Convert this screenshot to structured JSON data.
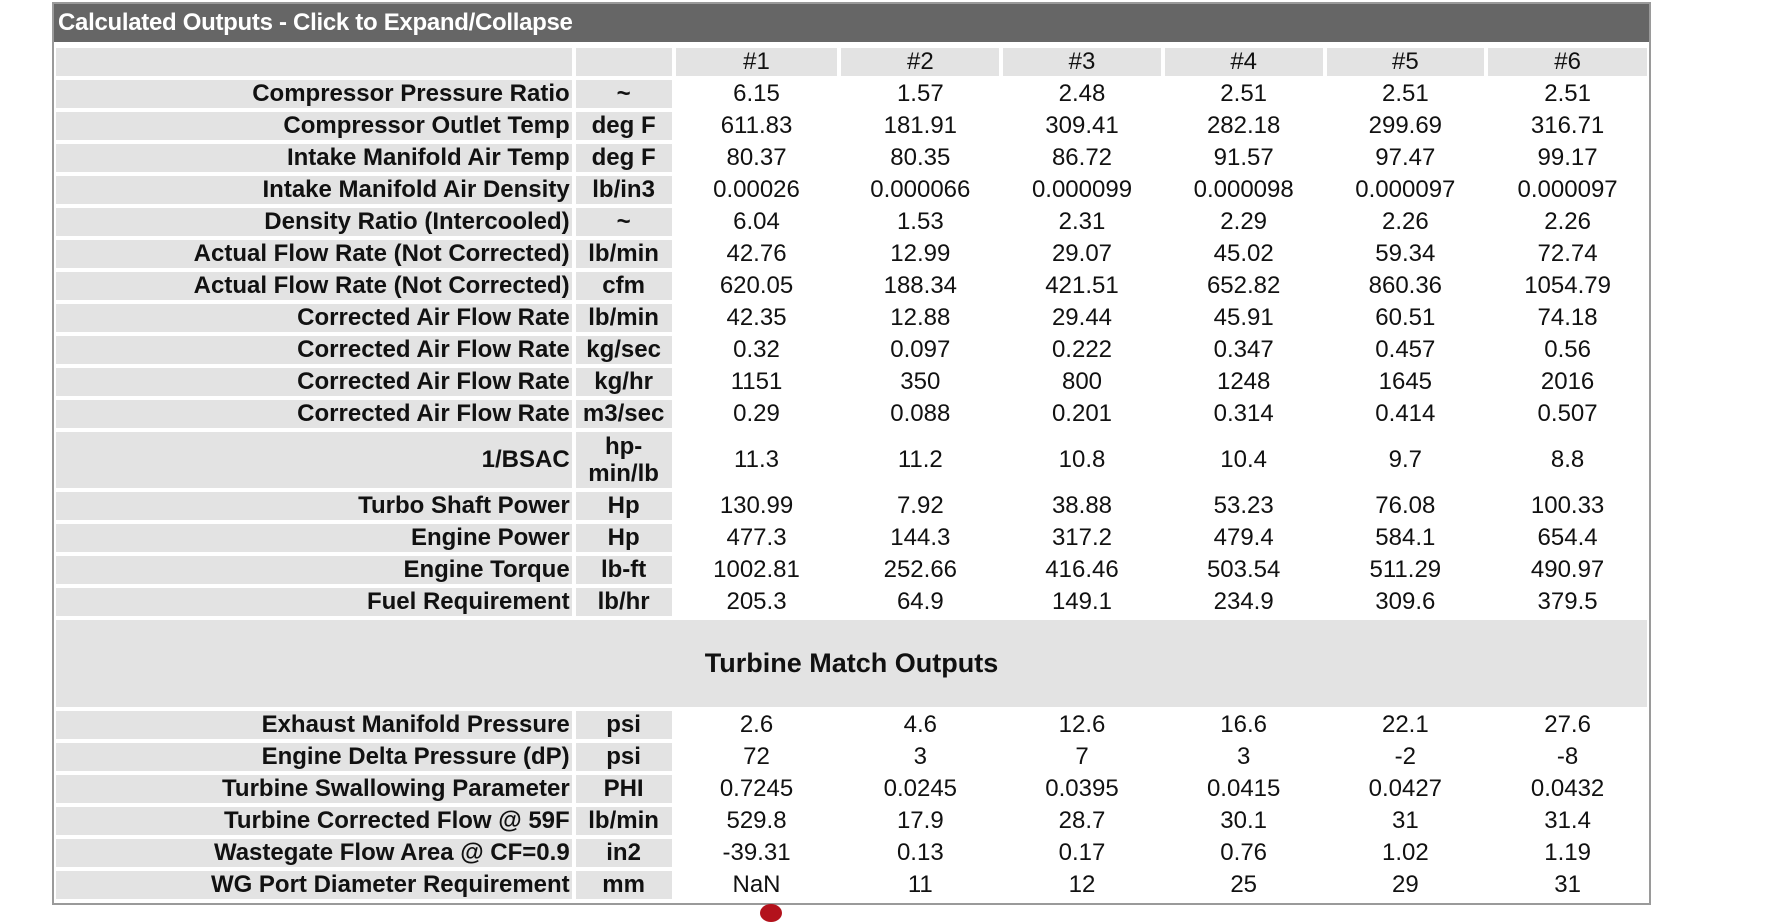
{
  "panel": {
    "title": "Calculated Outputs - Click to Expand/Collapse",
    "columns": [
      "#1",
      "#2",
      "#3",
      "#4",
      "#5",
      "#6"
    ]
  },
  "rows": [
    {
      "label": "Compressor Pressure Ratio",
      "unit": "~",
      "values": [
        "6.15",
        "1.57",
        "2.48",
        "2.51",
        "2.51",
        "2.51"
      ]
    },
    {
      "label": "Compressor Outlet Temp",
      "unit": "deg F",
      "values": [
        "611.83",
        "181.91",
        "309.41",
        "282.18",
        "299.69",
        "316.71"
      ]
    },
    {
      "label": "Intake Manifold Air Temp",
      "unit": "deg F",
      "values": [
        "80.37",
        "80.35",
        "86.72",
        "91.57",
        "97.47",
        "99.17"
      ]
    },
    {
      "label": "Intake Manifold Air Density",
      "unit": "lb/in3",
      "values": [
        "0.00026",
        "0.000066",
        "0.000099",
        "0.000098",
        "0.000097",
        "0.000097"
      ]
    },
    {
      "label": "Density Ratio (Intercooled)",
      "unit": "~",
      "values": [
        "6.04",
        "1.53",
        "2.31",
        "2.29",
        "2.26",
        "2.26"
      ]
    },
    {
      "label": "Actual Flow Rate (Not Corrected)",
      "unit": "lb/min",
      "values": [
        "42.76",
        "12.99",
        "29.07",
        "45.02",
        "59.34",
        "72.74"
      ]
    },
    {
      "label": "Actual Flow Rate (Not Corrected)",
      "unit": "cfm",
      "values": [
        "620.05",
        "188.34",
        "421.51",
        "652.82",
        "860.36",
        "1054.79"
      ]
    },
    {
      "label": "Corrected Air Flow Rate",
      "unit": "lb/min",
      "values": [
        "42.35",
        "12.88",
        "29.44",
        "45.91",
        "60.51",
        "74.18"
      ]
    },
    {
      "label": "Corrected Air Flow Rate",
      "unit": "kg/sec",
      "values": [
        "0.32",
        "0.097",
        "0.222",
        "0.347",
        "0.457",
        "0.56"
      ]
    },
    {
      "label": "Corrected Air Flow Rate",
      "unit": "kg/hr",
      "values": [
        "1151",
        "350",
        "800",
        "1248",
        "1645",
        "2016"
      ]
    },
    {
      "label": "Corrected Air Flow Rate",
      "unit": "m3/sec",
      "values": [
        "0.29",
        "0.088",
        "0.201",
        "0.314",
        "0.414",
        "0.507"
      ]
    },
    {
      "label": "1/BSAC",
      "unit": "hp-min/lb",
      "values": [
        "11.3",
        "11.2",
        "10.8",
        "10.4",
        "9.7",
        "8.8"
      ]
    },
    {
      "label": "Turbo Shaft Power",
      "unit": "Hp",
      "values": [
        "130.99",
        "7.92",
        "38.88",
        "53.23",
        "76.08",
        "100.33"
      ]
    },
    {
      "label": "Engine Power",
      "unit": "Hp",
      "values": [
        "477.3",
        "144.3",
        "317.2",
        "479.4",
        "584.1",
        "654.4"
      ]
    },
    {
      "label": "Engine Torque",
      "unit": "lb-ft",
      "values": [
        "1002.81",
        "252.66",
        "416.46",
        "503.54",
        "511.29",
        "490.97"
      ]
    },
    {
      "label": "Fuel Requirement",
      "unit": "lb/hr",
      "values": [
        "205.3",
        "64.9",
        "149.1",
        "234.9",
        "309.6",
        "379.5"
      ]
    }
  ],
  "turbine_section_title": "Turbine Match Outputs",
  "turbine_rows": [
    {
      "label": "Exhaust Manifold Pressure",
      "unit": "psi",
      "values": [
        "2.6",
        "4.6",
        "12.6",
        "16.6",
        "22.1",
        "27.6"
      ]
    },
    {
      "label": "Engine Delta Pressure (dP)",
      "unit": "psi",
      "values": [
        "72",
        "3",
        "7",
        "3",
        "-2",
        "-8"
      ]
    },
    {
      "label": "Turbine Swallowing Parameter",
      "unit": "PHI",
      "values": [
        "0.7245",
        "0.0245",
        "0.0395",
        "0.0415",
        "0.0427",
        "0.0432"
      ]
    },
    {
      "label": "Turbine Corrected Flow @ 59F",
      "unit": "lb/min",
      "values": [
        "529.8",
        "17.9",
        "28.7",
        "30.1",
        "31",
        "31.4"
      ]
    },
    {
      "label": "Wastegate Flow Area @ CF=0.9",
      "unit": "in2",
      "values": [
        "-39.31",
        "0.13",
        "0.17",
        "0.76",
        "1.02",
        "1.19"
      ]
    },
    {
      "label": "WG Port Diameter Requirement",
      "unit": "mm",
      "values": [
        "NaN",
        "11",
        "12",
        "25",
        "29",
        "31"
      ]
    }
  ]
}
